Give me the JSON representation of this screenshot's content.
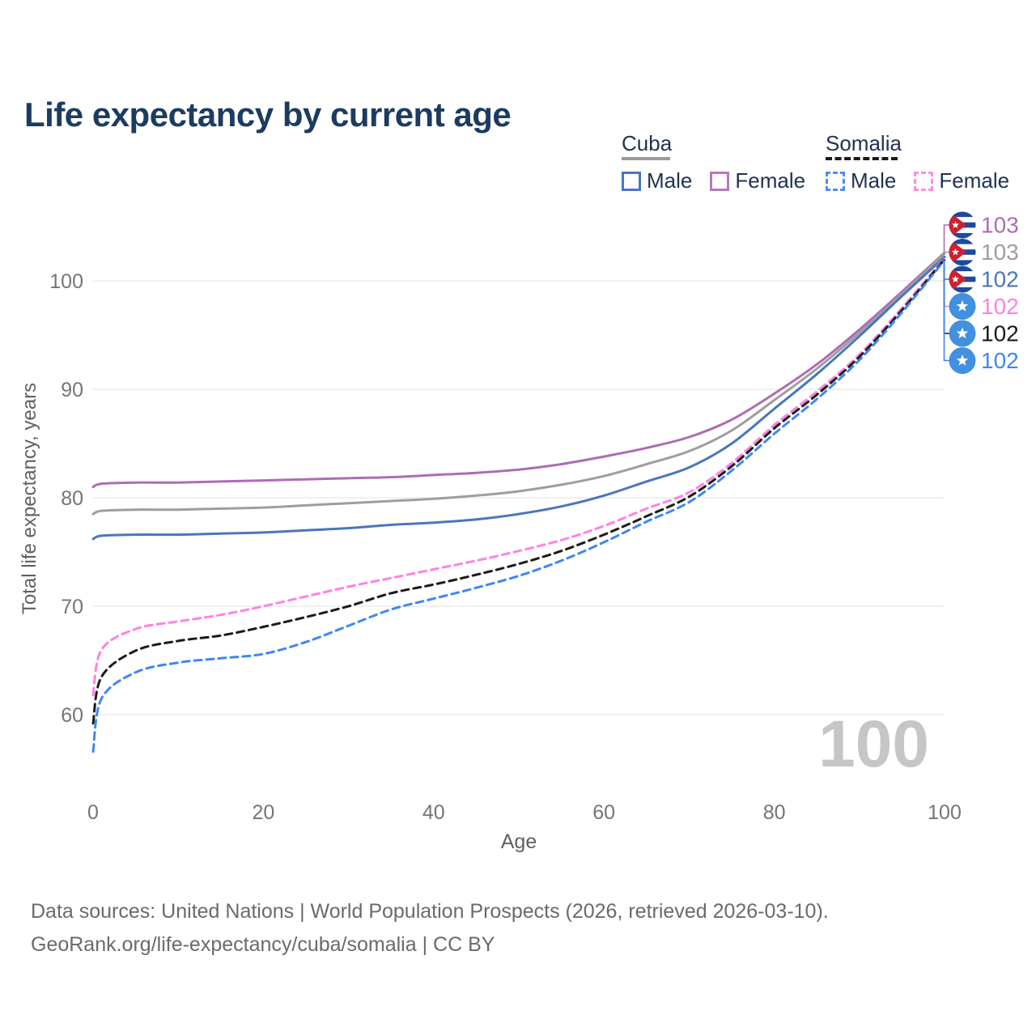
{
  "title": "Life expectancy by current age",
  "legend": {
    "groups": [
      {
        "label": "Cuba",
        "line_style": "solid",
        "line_color": "#9a9a9a",
        "items": [
          {
            "label": "Male",
            "color": "#4a77bb",
            "dashed": false
          },
          {
            "label": "Female",
            "color": "#b878b8",
            "dashed": false
          }
        ]
      },
      {
        "label": "Somalia",
        "line_style": "dashed",
        "line_color": "#1a1a1a",
        "items": [
          {
            "label": "Male",
            "color": "#4d8ef7",
            "dashed": true
          },
          {
            "label": "Female",
            "color": "#ff8ce1",
            "dashed": true
          }
        ]
      }
    ]
  },
  "chart_data": {
    "type": "line",
    "title": "Life expectancy by current age",
    "xlabel": "Age",
    "ylabel": "Total life expectancy, years",
    "watermark": "100",
    "grid": "horizontal",
    "legend_position": "top-right",
    "xlim": [
      0,
      100
    ],
    "ylim": [
      55,
      104.5
    ],
    "x_ticks": [
      0,
      20,
      40,
      60,
      80,
      100
    ],
    "y_ticks": [
      60,
      70,
      80,
      90,
      100
    ],
    "x": [
      0,
      1,
      5,
      10,
      15,
      20,
      25,
      30,
      35,
      40,
      45,
      50,
      55,
      60,
      65,
      70,
      75,
      80,
      85,
      90,
      95,
      100
    ],
    "series": [
      {
        "name": "Cuba Female",
        "country": "Cuba",
        "sex": "Female",
        "color": "#ae6cb4",
        "dashed": false,
        "flag": "cuba",
        "end_label": "103",
        "values": [
          81.0,
          81.3,
          81.4,
          81.4,
          81.5,
          81.6,
          81.7,
          81.8,
          81.9,
          82.1,
          82.3,
          82.6,
          83.1,
          83.8,
          84.6,
          85.6,
          87.2,
          89.6,
          92.3,
          95.5,
          99.0,
          102.6
        ]
      },
      {
        "name": "Cuba Both sexes",
        "country": "Cuba",
        "sex": "Both",
        "color": "#9e9e9e",
        "dashed": false,
        "flag": "cuba",
        "end_label": "103",
        "values": [
          78.5,
          78.8,
          78.9,
          78.9,
          79.0,
          79.1,
          79.3,
          79.5,
          79.7,
          79.9,
          80.2,
          80.6,
          81.2,
          82.0,
          83.1,
          84.3,
          86.2,
          89.0,
          91.9,
          95.2,
          98.8,
          102.5
        ]
      },
      {
        "name": "Cuba Male",
        "country": "Cuba",
        "sex": "Male",
        "color": "#4a77bb",
        "dashed": false,
        "flag": "cuba",
        "end_label": "102",
        "values": [
          76.2,
          76.5,
          76.6,
          76.6,
          76.7,
          76.8,
          77.0,
          77.2,
          77.5,
          77.7,
          78.0,
          78.5,
          79.2,
          80.2,
          81.5,
          82.8,
          85.0,
          88.2,
          91.4,
          94.9,
          98.6,
          102.2
        ]
      },
      {
        "name": "Somalia Female",
        "country": "Somalia",
        "sex": "Female",
        "color": "#ff82e2",
        "dashed": true,
        "flag": "somalia",
        "end_label": "102",
        "values": [
          61.8,
          66.0,
          67.9,
          68.6,
          69.2,
          70.0,
          70.9,
          71.8,
          72.6,
          73.4,
          74.2,
          75.1,
          76.1,
          77.4,
          79.0,
          80.5,
          83.2,
          86.7,
          89.8,
          93.2,
          97.5,
          102.1
        ]
      },
      {
        "name": "Somalia Both sexes",
        "country": "Somalia",
        "sex": "Both",
        "color": "#1a1a1a",
        "dashed": true,
        "flag": "somalia",
        "end_label": "102",
        "values": [
          59.2,
          63.5,
          65.9,
          66.8,
          67.3,
          68.1,
          69.0,
          70.0,
          71.2,
          72.0,
          72.9,
          73.9,
          75.1,
          76.6,
          78.3,
          80.1,
          82.9,
          86.4,
          89.5,
          93.0,
          97.3,
          102.0
        ]
      },
      {
        "name": "Somalia Male",
        "country": "Somalia",
        "sex": "Male",
        "color": "#3f87f2",
        "dashed": true,
        "flag": "somalia",
        "end_label": "102",
        "values": [
          56.6,
          61.5,
          63.9,
          64.8,
          65.2,
          65.6,
          66.7,
          68.2,
          69.7,
          70.7,
          71.7,
          72.8,
          74.2,
          75.9,
          77.8,
          79.6,
          82.5,
          85.9,
          89.1,
          92.7,
          97.1,
          101.9
        ]
      }
    ],
    "flag_colors": {
      "cuba_blue": "#1d4a9e",
      "cuba_red": "#ce2031",
      "somalia_blue": "#4290e0"
    },
    "grid_color": "#e8e8e8",
    "tick_color": "#757575",
    "axis_title_color": "#606060",
    "watermark_color": "#c6c6c6"
  },
  "footer": {
    "line1": "Data sources: United Nations | World Population Prospects (2026, retrieved 2026-03-10).",
    "line2": "GeoRank.org/life-expectancy/cuba/somalia | CC BY"
  }
}
